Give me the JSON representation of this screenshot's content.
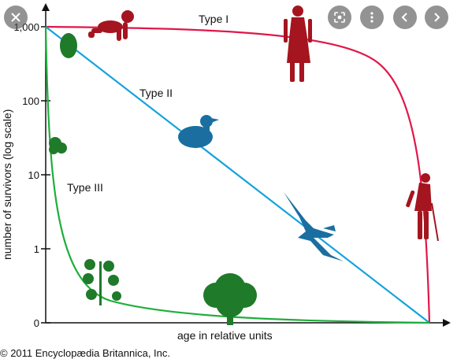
{
  "overlay": {
    "close_icon": "close-icon",
    "lens_icon": "lens-icon",
    "more_icon": "more-vertical-icon",
    "prev_icon": "chevron-left-icon",
    "next_icon": "chevron-right-icon"
  },
  "chart_data": {
    "type": "line",
    "title": "",
    "xlabel": "age in relative units",
    "ylabel": "number of survivors (log scale)",
    "y_scale": "log",
    "y_ticks": [
      "1,000",
      "100",
      "10",
      "1",
      "0"
    ],
    "x_ticks": [],
    "series": [
      {
        "name": "Type I",
        "color": "#e0174a",
        "x": [
          0,
          0.5,
          0.7,
          0.8,
          0.88,
          0.92,
          0.95,
          0.97,
          0.99,
          1.0
        ],
        "y": [
          1000,
          850,
          700,
          550,
          300,
          100,
          10,
          1,
          0.2,
          0
        ]
      },
      {
        "name": "Type II",
        "color": "#14a3dc",
        "x": [
          0,
          0.5,
          1.0
        ],
        "y": [
          1000,
          8,
          0
        ]
      },
      {
        "name": "Type III",
        "color": "#1fae3c",
        "x": [
          0,
          0.03,
          0.06,
          0.1,
          0.15,
          0.25,
          0.5,
          0.75,
          1.0
        ],
        "y": [
          1000,
          30,
          5,
          1.2,
          0.5,
          0.25,
          0.1,
          0.05,
          0
        ]
      }
    ],
    "colors": {
      "type1": "#e0174a",
      "type2": "#14a3dc",
      "type3": "#1fae3c",
      "human": "#a5151f",
      "bird": "#1a6fa0",
      "plant": "#1f7a2a"
    },
    "icons": [
      "baby-icon",
      "woman-icon",
      "elderly-person-icon",
      "bird-silhouette-icon",
      "eagle-icon",
      "seed-icon",
      "seedling-icon",
      "tree-icon"
    ]
  },
  "footer": {
    "credit": "© 2011 Encyclopædia Britannica, Inc."
  }
}
